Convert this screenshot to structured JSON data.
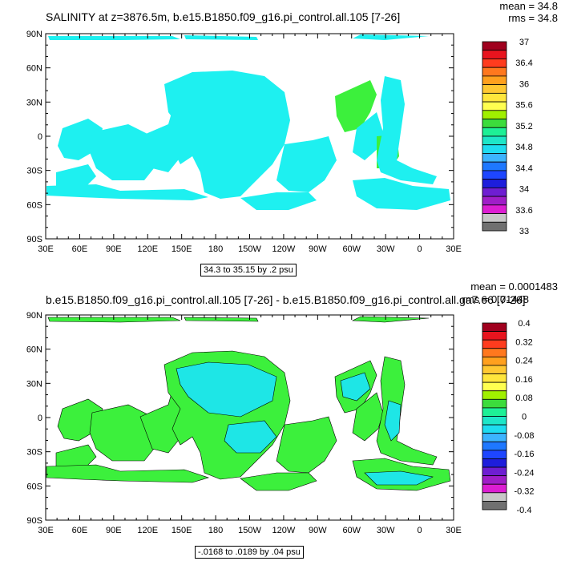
{
  "top": {
    "title": "SALINITY at z=3876.5m, b.e15.B1850.f09_g16.pi_control.all.105 [7-26]",
    "mean_label": "mean = 34.8",
    "rms_label": "rms = 34.8",
    "range_label": "34.3 to 35.15 by .2 psu",
    "colorbar": {
      "labels": [
        "37",
        "36.4",
        "36",
        "35.6",
        "35.2",
        "34.8",
        "34.4",
        "34",
        "33.6",
        "33"
      ],
      "colors": [
        "#a0001e",
        "#e8141e",
        "#ff3c1e",
        "#ff781e",
        "#ffa01e",
        "#ffc832",
        "#ffe63c",
        "#ffff50",
        "#a0f000",
        "#3cdc3c",
        "#1ef096",
        "#1ee6c8",
        "#1edcf0",
        "#3cb4ff",
        "#1e78ff",
        "#1e46ff",
        "#1e1edc",
        "#6e1ed2",
        "#a01ec8",
        "#dc1ed2",
        "#c8c8c8",
        "#707070"
      ]
    },
    "land_fill": "#1ef0f0"
  },
  "bottom": {
    "title": "b.e15.B1850.f09_g16.pi_control.all.105 [7-26] - b.e15.B1850.f09_g16.pi_control.all.ga7.66 [7-26]",
    "mean_label": "mean = 0.0001483",
    "rms_label": "rms = 0.01448",
    "range_label": "-.0168 to .0189 by .04 psu",
    "colorbar": {
      "labels": [
        "0.4",
        "0.32",
        "0.24",
        "0.16",
        "0.08",
        "0",
        "-0.08",
        "-0.16",
        "-0.24",
        "-0.32",
        "-0.4"
      ],
      "colors": [
        "#a0001e",
        "#e8141e",
        "#ff3c1e",
        "#ff781e",
        "#ffa01e",
        "#ffc832",
        "#ffe63c",
        "#ffff50",
        "#a0f000",
        "#3cdc3c",
        "#1ef096",
        "#1ee6c8",
        "#1edcf0",
        "#3cb4ff",
        "#1e78ff",
        "#1e46ff",
        "#1e1edc",
        "#6e1ed2",
        "#a01ec8",
        "#dc1ed2",
        "#c8c8c8",
        "#707070"
      ]
    },
    "fill_green": "#3cf03c",
    "fill_cyan": "#1ee6e6"
  },
  "axes": {
    "lat_labels": [
      "90N",
      "60N",
      "30N",
      "0",
      "30S",
      "60S",
      "90S"
    ],
    "lon_labels": [
      "30E",
      "60E",
      "90E",
      "120E",
      "150E",
      "180",
      "150W",
      "120W",
      "90W",
      "60W",
      "30W",
      "0",
      "30E"
    ]
  }
}
